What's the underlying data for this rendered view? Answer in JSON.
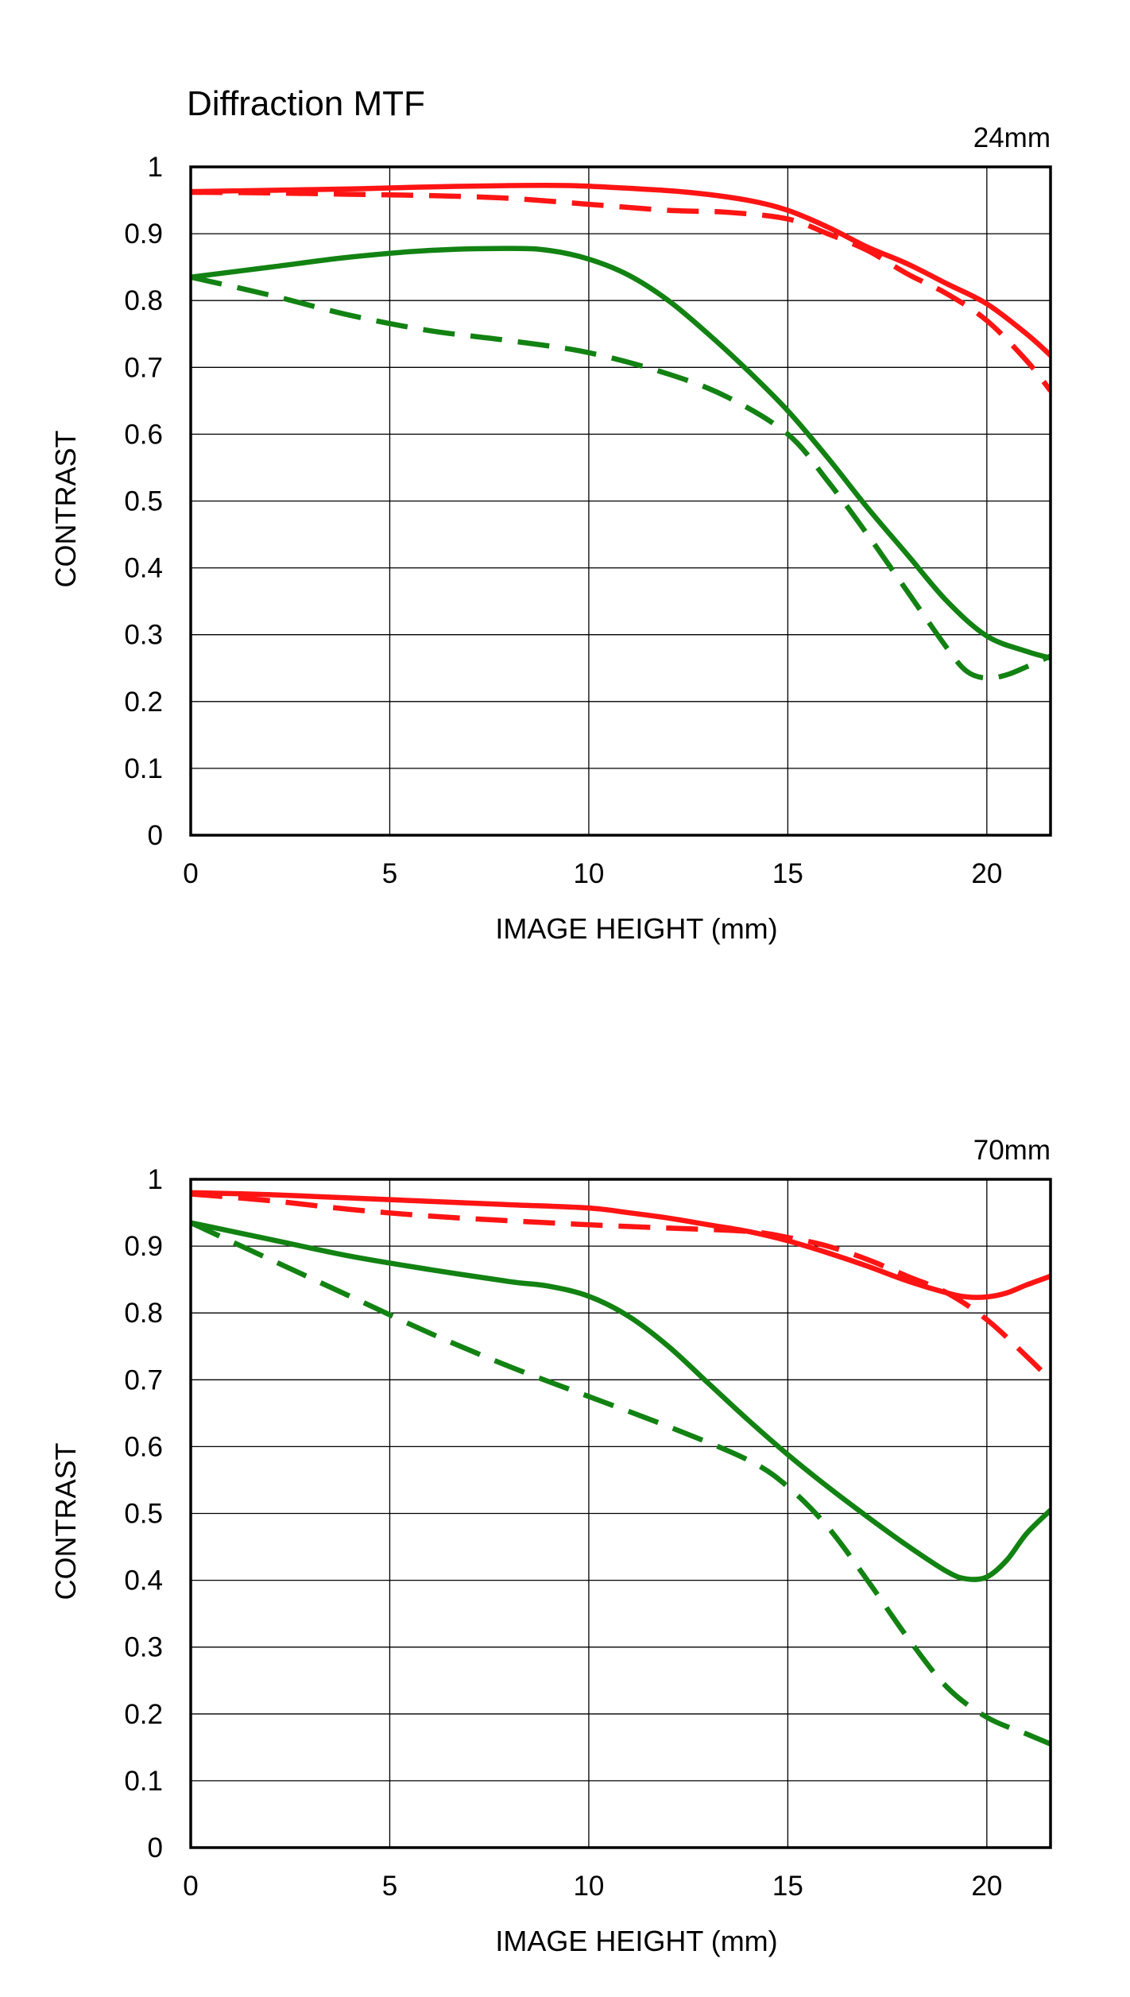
{
  "title": "Diffraction MTF",
  "colors": {
    "sagittal_red": "#ff1414",
    "meridional_green": "#128212"
  },
  "chart_data": [
    {
      "type": "line",
      "focal_label": "24mm",
      "xlabel": "IMAGE HEIGHT (mm)",
      "ylabel": "CONTRAST",
      "xlim": [
        0,
        21.6
      ],
      "ylim": [
        0,
        1
      ],
      "xticks": [
        0,
        5,
        10,
        15,
        20
      ],
      "yticks": [
        0,
        0.1,
        0.2,
        0.3,
        0.4,
        0.5,
        0.6,
        0.7,
        0.8,
        0.9,
        1
      ],
      "grid": true,
      "series": [
        {
          "color": "#ff1414",
          "style": "solid",
          "x": [
            0,
            2,
            4,
            6,
            8,
            9.5,
            11,
            12.5,
            14,
            15,
            16,
            17,
            18,
            19,
            20,
            21,
            21.6
          ],
          "y": [
            0.963,
            0.965,
            0.967,
            0.97,
            0.972,
            0.972,
            0.968,
            0.962,
            0.95,
            0.935,
            0.91,
            0.88,
            0.855,
            0.825,
            0.795,
            0.75,
            0.718
          ]
        },
        {
          "color": "#ff1414",
          "style": "dashed",
          "x": [
            0,
            2,
            4,
            6,
            8,
            10,
            12,
            13.5,
            15,
            16,
            17,
            18,
            19,
            20,
            21,
            21.6
          ],
          "y": [
            0.962,
            0.961,
            0.959,
            0.957,
            0.953,
            0.944,
            0.935,
            0.932,
            0.922,
            0.9,
            0.875,
            0.84,
            0.81,
            0.77,
            0.71,
            0.665
          ]
        },
        {
          "color": "#128212",
          "style": "solid",
          "x": [
            0,
            2,
            4,
            6,
            8,
            9,
            10,
            11,
            12,
            13,
            14,
            15,
            16,
            17,
            18,
            19,
            20,
            21,
            21.6
          ],
          "y": [
            0.835,
            0.85,
            0.865,
            0.875,
            0.878,
            0.875,
            0.862,
            0.838,
            0.8,
            0.75,
            0.695,
            0.635,
            0.565,
            0.49,
            0.42,
            0.35,
            0.298,
            0.275,
            0.265
          ]
        },
        {
          "color": "#128212",
          "style": "dashed",
          "x": [
            0,
            2,
            4,
            6,
            8,
            10,
            12,
            13.5,
            15,
            16,
            17,
            18,
            19,
            19.5,
            20,
            20.5,
            21,
            21.6
          ],
          "y": [
            0.835,
            0.808,
            0.778,
            0.755,
            0.74,
            0.722,
            0.69,
            0.655,
            0.6,
            0.53,
            0.45,
            0.365,
            0.28,
            0.245,
            0.235,
            0.24,
            0.252,
            0.268
          ]
        }
      ]
    },
    {
      "type": "line",
      "focal_label": "70mm",
      "xlabel": "IMAGE HEIGHT (mm)",
      "ylabel": "CONTRAST",
      "xlim": [
        0,
        21.6
      ],
      "ylim": [
        0,
        1
      ],
      "xticks": [
        0,
        5,
        10,
        15,
        20
      ],
      "yticks": [
        0,
        0.1,
        0.2,
        0.3,
        0.4,
        0.5,
        0.6,
        0.7,
        0.8,
        0.9,
        1
      ],
      "grid": true,
      "series": [
        {
          "color": "#ff1414",
          "style": "solid",
          "x": [
            0,
            2,
            4,
            6,
            8,
            10,
            11,
            12,
            13,
            14,
            15,
            16,
            17,
            18,
            19,
            19.5,
            20,
            20.5,
            21,
            21.6
          ],
          "y": [
            0.98,
            0.977,
            0.972,
            0.967,
            0.962,
            0.957,
            0.95,
            0.942,
            0.932,
            0.922,
            0.908,
            0.89,
            0.87,
            0.848,
            0.83,
            0.824,
            0.824,
            0.83,
            0.842,
            0.855
          ]
        },
        {
          "color": "#128212",
          "style": "dashed",
          "x": [
            0,
            2,
            4,
            6,
            8,
            10,
            12,
            14,
            15,
            16,
            17,
            18,
            19,
            20,
            21,
            21.6
          ],
          "y": [
            0.935,
            0.88,
            0.825,
            0.77,
            0.72,
            0.675,
            0.63,
            0.58,
            0.54,
            0.48,
            0.4,
            0.315,
            0.24,
            0.195,
            0.17,
            0.155
          ]
        },
        {
          "color": "#ff1414",
          "style": "dashed",
          "x": [
            0,
            2,
            4,
            6,
            8,
            10,
            12,
            14,
            15,
            16,
            17,
            18,
            19,
            20,
            21,
            21.6
          ],
          "y": [
            0.978,
            0.968,
            0.955,
            0.945,
            0.938,
            0.932,
            0.927,
            0.922,
            0.913,
            0.9,
            0.88,
            0.855,
            0.83,
            0.79,
            0.735,
            0.7
          ]
        },
        {
          "color": "#128212",
          "style": "solid",
          "x": [
            0,
            2,
            4,
            6,
            8,
            9,
            10,
            11,
            12,
            13,
            14,
            15,
            16,
            17,
            18,
            19,
            19.5,
            20,
            20.5,
            21,
            21.6
          ],
          "y": [
            0.935,
            0.91,
            0.885,
            0.865,
            0.847,
            0.84,
            0.825,
            0.795,
            0.75,
            0.695,
            0.64,
            0.588,
            0.54,
            0.495,
            0.452,
            0.413,
            0.402,
            0.405,
            0.43,
            0.47,
            0.505
          ]
        }
      ]
    }
  ]
}
